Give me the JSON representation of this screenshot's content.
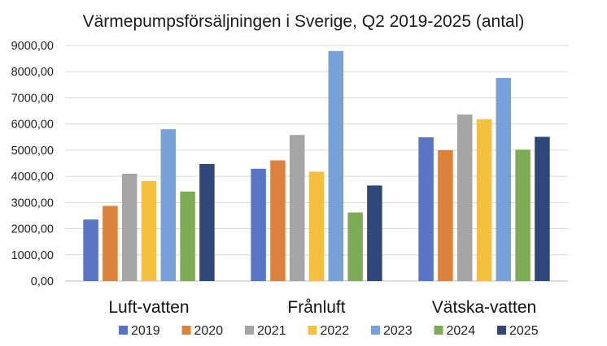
{
  "chart_data": {
    "type": "bar",
    "title": "Värmepumpsförsäljningen i Sverige, Q2 2019-2025 (antal)",
    "xlabel": "",
    "ylabel": "",
    "ylim": [
      0,
      9000
    ],
    "yticks": [
      "0,00",
      "1000,00",
      "2000,00",
      "3000,00",
      "4000,00",
      "5000,00",
      "6000,00",
      "7000,00",
      "8000,00",
      "9000,00"
    ],
    "grid": true,
    "legend_position": "bottom",
    "categories": [
      "Luft-vatten",
      "Frånluft",
      "Vätska-vatten"
    ],
    "series": [
      {
        "name": "2019",
        "color": "#5a74c4",
        "values": [
          2350,
          4290,
          5490
        ]
      },
      {
        "name": "2020",
        "color": "#dc823c",
        "values": [
          2870,
          4610,
          5000
        ]
      },
      {
        "name": "2021",
        "color": "#a5a5a5",
        "values": [
          4100,
          5580,
          6360
        ]
      },
      {
        "name": "2022",
        "color": "#f4c03e",
        "values": [
          3820,
          4180,
          6180
        ]
      },
      {
        "name": "2023",
        "color": "#79a1d9",
        "values": [
          5800,
          8790,
          7760
        ]
      },
      {
        "name": "2024",
        "color": "#7eac55",
        "values": [
          3420,
          2620,
          5020
        ]
      },
      {
        "name": "2025",
        "color": "#2f4779",
        "values": [
          4470,
          3650,
          5510
        ]
      }
    ]
  }
}
